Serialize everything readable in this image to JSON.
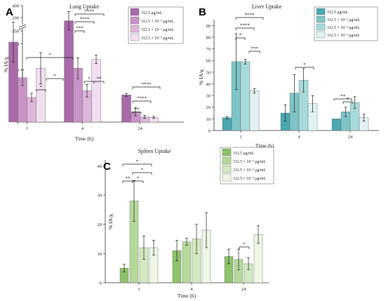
{
  "panels": [
    {
      "label": "A"
    },
    {
      "label": "B"
    },
    {
      "label": "C"
    }
  ],
  "chart_data": [
    {
      "type": "bar",
      "title": "Lung Uptake",
      "xlabel": "Time (h)",
      "ylabel": "% IA/g",
      "categories": [
        "1",
        "4",
        "24"
      ],
      "ylim": [
        0,
        400
      ],
      "axis_break": [
        200,
        325
      ],
      "yticks": [
        "0",
        "50",
        "100",
        "150",
        "200",
        "350",
        "400"
      ],
      "legend_position": "top-right",
      "colors": [
        "#a86aa8",
        "#c993c6",
        "#deb6da",
        "#f1dff0"
      ],
      "series": [
        {
          "name": "312.5 μg/mL",
          "values": [
            153,
            370,
            52
          ],
          "errors": [
            38,
            18,
            3
          ]
        },
        {
          "name": "312.5 × 10⁻¹ μg/mL",
          "values": [
            85,
            103,
            20
          ],
          "errors": [
            15,
            20,
            8
          ]
        },
        {
          "name": "312.5 × 10⁻² μg/mL",
          "values": [
            47,
            60,
            10
          ],
          "errors": [
            8,
            12,
            3
          ]
        },
        {
          "name": "312.5 × 10⁻³ μg/mL",
          "values": [
            103,
            120,
            9
          ],
          "errors": [
            30,
            8,
            2
          ]
        }
      ],
      "annotations": [
        "*",
        "*",
        "*",
        "****",
        "****",
        "***",
        "*",
        "**",
        "****",
        "****",
        "**"
      ]
    },
    {
      "type": "bar",
      "title": "Liver Uptake",
      "xlabel": "Time (h)",
      "ylabel": "% IA/g",
      "categories": [
        "1",
        "4",
        "24"
      ],
      "ylim": [
        0,
        95
      ],
      "yticks": [
        "0",
        "10",
        "20",
        "30",
        "40",
        "50",
        "60",
        "70",
        "80",
        "90"
      ],
      "legend_position": "top-right",
      "colors": [
        "#4aa8b0",
        "#7ec4c6",
        "#a8dadb",
        "#e2f2f2"
      ],
      "series": [
        {
          "name": "312.5 μg/mL",
          "values": [
            11,
            15,
            10
          ],
          "errors": [
            1,
            7,
            0
          ]
        },
        {
          "name": "312.5 × 10⁻¹ μg/mL",
          "values": [
            59,
            32,
            16
          ],
          "errors": [
            24,
            16,
            4
          ]
        },
        {
          "name": "312.5 × 10⁻² μg/mL",
          "values": [
            59,
            43,
            24
          ],
          "errors": [
            2,
            10,
            5
          ]
        },
        {
          "name": "312.5 × 10⁻³ μg/mL",
          "values": [
            34,
            23,
            11
          ],
          "errors": [
            2,
            7,
            3
          ]
        }
      ],
      "annotations": [
        "****",
        "****",
        "*",
        "***",
        "*",
        "**",
        "*"
      ]
    },
    {
      "type": "bar",
      "title": "Spleen Uptake",
      "xlabel": "Time (h)",
      "ylabel": "% IA/g",
      "categories": [
        "1",
        "4",
        "24"
      ],
      "ylim": [
        0,
        42
      ],
      "yticks": [
        "0",
        "10",
        "20",
        "30",
        "40"
      ],
      "legend_position": "top-right",
      "colors": [
        "#8dc26a",
        "#b5d99a",
        "#d2e9c0",
        "#eef7e6"
      ],
      "series": [
        {
          "name": "312.5 μg/mL",
          "values": [
            5,
            11,
            9
          ],
          "errors": [
            1.3,
            3.5,
            2.5
          ]
        },
        {
          "name": "312.5 × 10⁻¹ μg/mL",
          "values": [
            28,
            14,
            8
          ],
          "errors": [
            7,
            1.2,
            3.5
          ]
        },
        {
          "name": "312.5 × 10⁻² μg/mL",
          "values": [
            12,
            15,
            6.5
          ],
          "errors": [
            4,
            5,
            2
          ]
        },
        {
          "name": "312.5 × 10⁻³ μg/mL",
          "values": [
            12,
            18,
            16.5
          ],
          "errors": [
            2.5,
            6,
            3
          ]
        }
      ],
      "annotations": [
        "*",
        "*",
        "**",
        "*",
        "*"
      ]
    }
  ]
}
